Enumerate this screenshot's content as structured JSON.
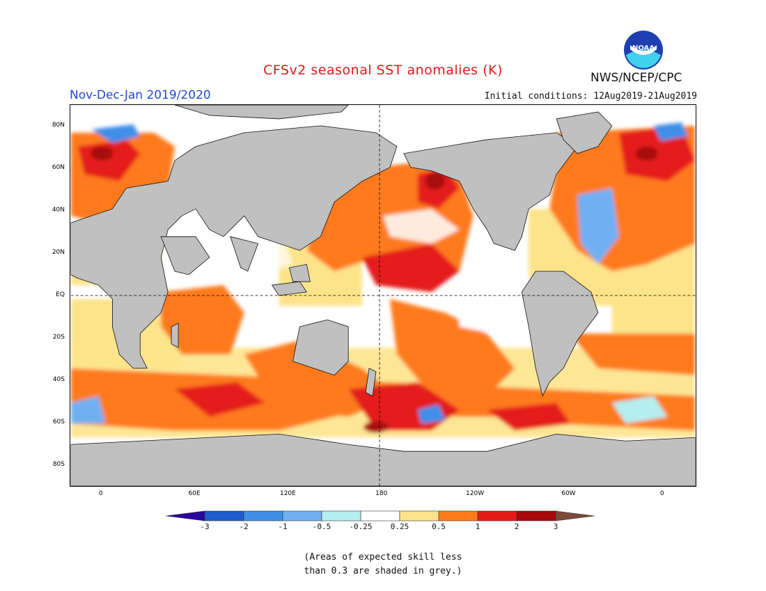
{
  "header": {
    "title": "CFSv2 seasonal SST anomalies (K)",
    "season": "Nov-Dec-Jan 2019/2020",
    "initial_conditions": "Initial conditions: 12Aug2019-21Aug2019",
    "agency": "NWS/NCEP/CPC",
    "logo_text": "NOAA"
  },
  "map": {
    "projection": "equirectangular",
    "lon_range": [
      -20,
      382
    ],
    "lat_range": [
      -90,
      90
    ],
    "lat_ticks": [
      {
        "lat": 80,
        "label": "80N"
      },
      {
        "lat": 60,
        "label": "60N"
      },
      {
        "lat": 40,
        "label": "40N"
      },
      {
        "lat": 20,
        "label": "20N"
      },
      {
        "lat": 0,
        "label": "EQ"
      },
      {
        "lat": -20,
        "label": "20S"
      },
      {
        "lat": -40,
        "label": "40S"
      },
      {
        "lat": -60,
        "label": "60S"
      },
      {
        "lat": -80,
        "label": "80S"
      }
    ],
    "lon_ticks": [
      {
        "lon": 0,
        "label": "0"
      },
      {
        "lon": 60,
        "label": "60E"
      },
      {
        "lon": 120,
        "label": "120E"
      },
      {
        "lon": 180,
        "label": "180"
      },
      {
        "lon": 240,
        "label": "120W"
      },
      {
        "lon": 300,
        "label": "60W"
      },
      {
        "lon": 360,
        "label": "0"
      }
    ],
    "land_color": "#c0c0c0"
  },
  "legend": {
    "labels": [
      "-3",
      "-2",
      "-1",
      "-0.5",
      "-0.25",
      "0.25",
      "0.5",
      "1",
      "2",
      "3"
    ],
    "colors": [
      "#2a07a0",
      "#1e5ccd",
      "#3f8ee8",
      "#6fb0f2",
      "#b5eef0",
      "#ffffff",
      "#fde48b",
      "#fe7a1b",
      "#e41a1a",
      "#a60a0a",
      "#7d4a3a"
    ]
  },
  "skill_note": {
    "line1": "(Areas of expected skill less",
    "line2": "than 0.3 are shaded in grey.)"
  }
}
